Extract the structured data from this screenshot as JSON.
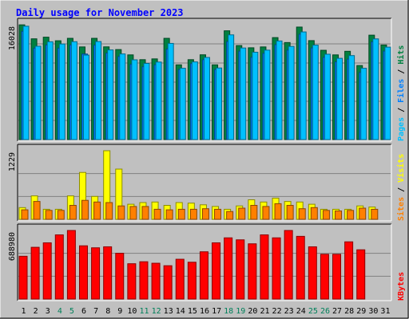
{
  "chart_data": {
    "type": "bar",
    "title": "Daily usage for November 2023",
    "days": [
      "1",
      "2",
      "3",
      "4",
      "5",
      "6",
      "7",
      "8",
      "9",
      "10",
      "11",
      "12",
      "13",
      "14",
      "15",
      "16",
      "17",
      "18",
      "19",
      "20",
      "21",
      "22",
      "23",
      "24",
      "25",
      "26",
      "27",
      "28",
      "29",
      "30",
      "31"
    ],
    "weekend_days": [
      "4",
      "5",
      "11",
      "12",
      "18",
      "19",
      "25",
      "26"
    ],
    "panels": [
      {
        "name": "top",
        "max_label": "16028",
        "max": 16028,
        "legend": [
          {
            "text": "Hits",
            "color": "#008040"
          },
          {
            "text": "Files",
            "color": "#0080ff"
          },
          {
            "text": "Pages",
            "color": "#00c0ff"
          }
        ],
        "series": [
          {
            "name": "Hits",
            "color": "#008040",
            "values": [
              16010,
              14060,
              14290,
              13790,
              14130,
              12930,
              14130,
              12940,
              12560,
              11820,
              11150,
              11260,
              14130,
              10430,
              11150,
              11830,
              10430,
              15180,
              13120,
              12810,
              12930,
              14230,
              13540,
              15700,
              13810,
              12460,
              11820,
              12320,
              10330,
              14570,
              13200
            ]
          },
          {
            "name": "Files",
            "color": "#0080ff",
            "values": [
              15100,
              12750,
              13200,
              12750,
              13200,
              11940,
              13180,
              12070,
              11600,
              10500,
              10160,
              10430,
              12620,
              9780,
              10600,
              11150,
              9780,
              13690,
              12340,
              11480,
              12030,
              13250,
              12480,
              14700,
              12790,
              11470,
              10840,
              11220,
              9370,
              13640,
              12340
            ]
          },
          {
            "name": "Pages",
            "color": "#00c0ff",
            "values": [
              15820,
              13030,
              13650,
              13340,
              13660,
              11790,
              13680,
              12510,
              11950,
              11130,
              10630,
              10820,
              13420,
              9950,
              10840,
              11460,
              9990,
              14610,
              12780,
              12190,
              12480,
              13760,
              13000,
              15020,
              13180,
              11910,
              11340,
              11720,
              9950,
              14050,
              12900
            ]
          }
        ]
      },
      {
        "name": "middle",
        "max_label": "1229",
        "max": 1229,
        "legend": [
          {
            "text": "Visits",
            "color": "#ffff00"
          },
          {
            "text": "Sites",
            "color": "#ff8000"
          }
        ],
        "series": [
          {
            "name": "Visits",
            "color": "#ffff00",
            "values": [
              210,
              420,
              180,
              180,
              420,
              840,
              410,
              1229,
              900,
              270,
              300,
              310,
              250,
              300,
              290,
              260,
              230,
              180,
              240,
              350,
              310,
              380,
              320,
              310,
              270,
              180,
              180,
              180,
              240,
              220,
              0
            ]
          },
          {
            "name": "Sites",
            "color": "#ff8000",
            "values": [
              170,
              320,
              160,
              160,
              250,
              340,
              310,
              300,
              240,
              230,
              230,
              180,
              170,
              180,
              180,
              190,
              180,
              140,
              200,
              250,
              230,
              280,
              250,
              190,
              210,
              160,
              150,
              160,
              200,
              180,
              0
            ]
          }
        ]
      },
      {
        "name": "bottom",
        "max_label": "688980",
        "max": 688980,
        "legend": [
          {
            "text": "KBytes",
            "color": "#ff0000"
          }
        ],
        "series": [
          {
            "name": "KBytes",
            "color": "#ff0000",
            "values": [
              430000,
              520000,
              565000,
              645000,
              688980,
              535000,
              515000,
              525000,
              460000,
              355000,
              375000,
              360000,
              335000,
              400000,
              370000,
              475000,
              565000,
              615000,
              595000,
              555000,
              645000,
              615000,
              688980,
              630000,
              525000,
              450000,
              450000,
              575000,
              495000,
              0,
              0
            ]
          }
        ]
      }
    ]
  }
}
